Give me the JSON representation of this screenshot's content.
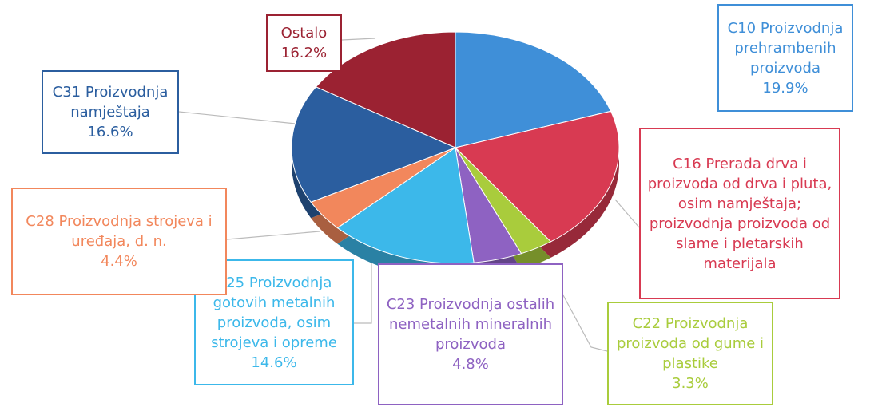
{
  "chart_data": {
    "type": "pie",
    "categories": [
      "C10 Proizvodnja prehrambenih proizvoda",
      "C16 Prerada drva i proizvoda od drva i pluta, osim namještaja; proizvodnja proizvoda od slame i pletarskih materijala",
      "C22 Proizvodnja proizvoda od gume i plastike",
      "C23 Proizvodnja ostalih nemetalnih mineralnih proizvoda",
      "C25 Proizvodnja gotovih metalnih proizvoda, osim strojeva i opreme",
      "C28 Proizvodnja strojeva i uređaja, d. n.",
      "C31 Proizvodnja namještaja",
      "Ostalo"
    ],
    "values": [
      19.9,
      20.2,
      3.3,
      4.8,
      14.6,
      4.4,
      16.6,
      16.2
    ],
    "value_labels": [
      "19.9%",
      null,
      "3.3%",
      "4.8%",
      "14.6%",
      "4.4%",
      "16.6%",
      "16.2%"
    ],
    "colors": [
      "#3f8fd8",
      "#d83a52",
      "#a9cc3c",
      "#8e62c2",
      "#3cb8ea",
      "#f2875c",
      "#2b5e9f",
      "#9b2232"
    ]
  }
}
